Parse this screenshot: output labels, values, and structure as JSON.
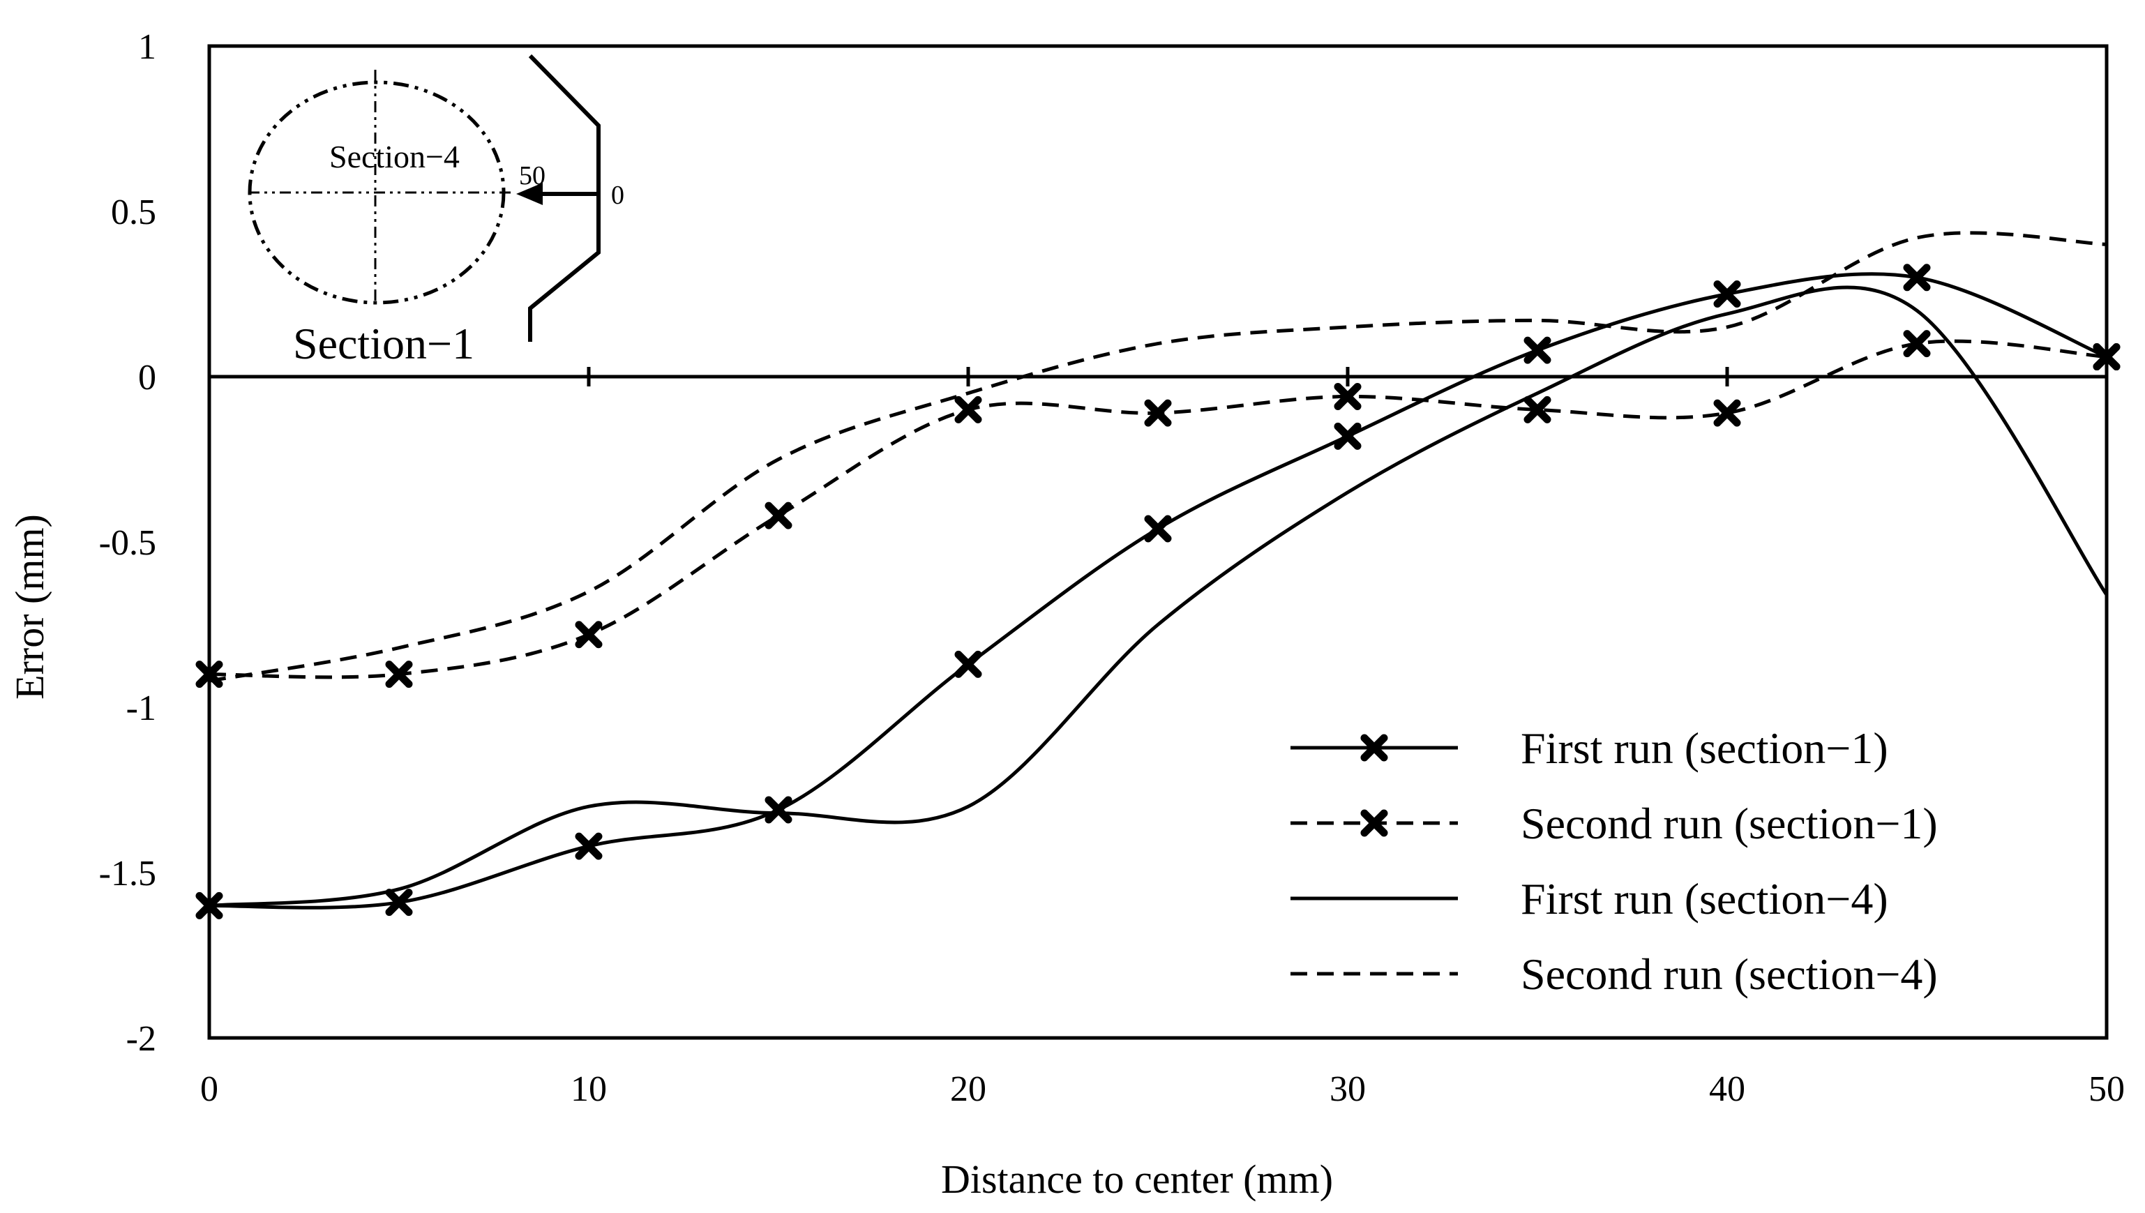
{
  "chart_data": {
    "type": "line",
    "title": "",
    "xlabel": "Distance to center (mm)",
    "ylabel": "Error (mm)",
    "xlim": [
      0,
      50
    ],
    "ylim": [
      -2,
      1
    ],
    "xticks": [
      0,
      10,
      20,
      30,
      40,
      50
    ],
    "yticks": [
      1,
      0.5,
      0,
      -0.5,
      -1,
      -1.5,
      -2
    ],
    "xtick_labels": [
      "0",
      "10",
      "20",
      "30",
      "40",
      "50"
    ],
    "ytick_labels": [
      "1",
      "0.5",
      "0",
      "-0.5",
      "-1",
      "-1.5",
      "-2"
    ],
    "grid": false,
    "legend_position": "bottom-right",
    "series": [
      {
        "name": "First run (section−1)",
        "style": "solid",
        "markers": true,
        "x": [
          0,
          5,
          10,
          15,
          20,
          25,
          30,
          35,
          40,
          45,
          50
        ],
        "y": [
          -1.6,
          -1.59,
          -1.42,
          -1.31,
          -0.87,
          -0.46,
          -0.18,
          0.08,
          0.25,
          0.3,
          0.06
        ]
      },
      {
        "name": "Second run (section−1)",
        "style": "dashed",
        "markers": true,
        "x": [
          0,
          5,
          10,
          15,
          20,
          25,
          30,
          35,
          40,
          45,
          50
        ],
        "y": [
          -0.9,
          -0.9,
          -0.78,
          -0.42,
          -0.1,
          -0.11,
          -0.06,
          -0.1,
          -0.11,
          0.1,
          0.06
        ]
      },
      {
        "name": "First run (section−4)",
        "style": "solid",
        "markers": false,
        "x": [
          0,
          5,
          10,
          15,
          20,
          25,
          30,
          35,
          40,
          45,
          50
        ],
        "y": [
          -1.6,
          -1.55,
          -1.3,
          -1.32,
          -1.3,
          -0.75,
          -0.35,
          -0.05,
          0.19,
          0.2,
          -0.66
        ]
      },
      {
        "name": "Second run (section−4)",
        "style": "dashed",
        "markers": false,
        "x": [
          0,
          5,
          10,
          15,
          20,
          25,
          30,
          35,
          40,
          45,
          50
        ],
        "y": [
          -0.92,
          -0.82,
          -0.65,
          -0.25,
          -0.05,
          0.1,
          0.15,
          0.17,
          0.15,
          0.42,
          0.4
        ]
      }
    ],
    "inset": {
      "label_section4": "Section−4",
      "label_section1": "Section−1",
      "label_50": "50",
      "label_0": "0"
    }
  }
}
